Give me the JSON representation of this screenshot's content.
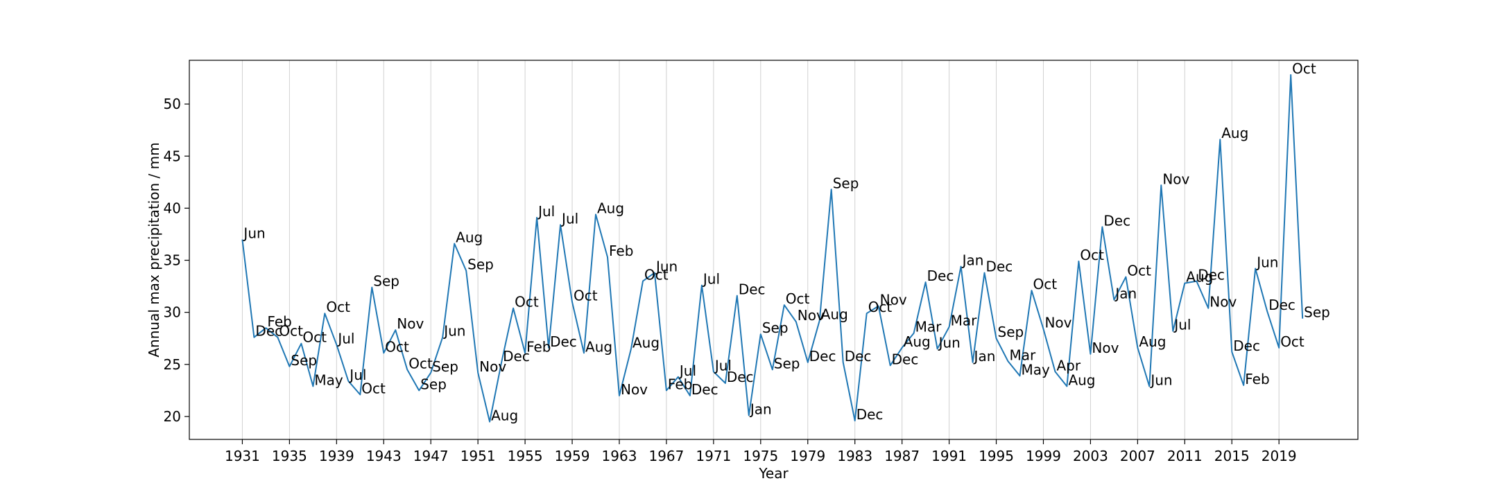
{
  "chart_data": {
    "type": "line",
    "title": "",
    "xlabel": "Year",
    "ylabel": "Annual max precipitation / mm",
    "xlim": [
      1926.5,
      2025.7
    ],
    "ylim": [
      17.8,
      54.2
    ],
    "grid": {
      "x": true,
      "y": false
    },
    "xticks": [
      1931,
      1935,
      1939,
      1943,
      1947,
      1951,
      1955,
      1959,
      1963,
      1967,
      1971,
      1975,
      1979,
      1983,
      1987,
      1991,
      1995,
      1999,
      2003,
      2007,
      2011,
      2015,
      2019
    ],
    "yticks": [
      20,
      25,
      30,
      35,
      40,
      45,
      50
    ],
    "colors": {
      "line": "#1f77b4",
      "grid": "#d0d0d0"
    },
    "series": [
      {
        "points": [
          {
            "x": 1931,
            "y": 37.0,
            "label": "Jun"
          },
          {
            "x": 1932,
            "y": 27.6,
            "label": "Dec"
          },
          {
            "x": 1933,
            "y": 28.5,
            "label": "Feb"
          },
          {
            "x": 1934,
            "y": 27.6,
            "label": "Oct"
          },
          {
            "x": 1935,
            "y": 24.8,
            "label": "Sep"
          },
          {
            "x": 1936,
            "y": 27.0,
            "label": "Oct"
          },
          {
            "x": 1937,
            "y": 22.9,
            "label": "May"
          },
          {
            "x": 1938,
            "y": 29.9,
            "label": "Oct"
          },
          {
            "x": 1939,
            "y": 26.9,
            "label": "Jul"
          },
          {
            "x": 1940,
            "y": 23.4,
            "label": "Jul"
          },
          {
            "x": 1941,
            "y": 22.1,
            "label": "Oct"
          },
          {
            "x": 1942,
            "y": 32.4,
            "label": "Sep"
          },
          {
            "x": 1943,
            "y": 26.1,
            "label": "Oct"
          },
          {
            "x": 1944,
            "y": 28.3,
            "label": "Nov"
          },
          {
            "x": 1945,
            "y": 24.5,
            "label": "Oct"
          },
          {
            "x": 1946,
            "y": 22.5,
            "label": "Sep"
          },
          {
            "x": 1947,
            "y": 24.2,
            "label": "Sep"
          },
          {
            "x": 1948,
            "y": 27.6,
            "label": "Jun"
          },
          {
            "x": 1949,
            "y": 36.6,
            "label": "Aug"
          },
          {
            "x": 1950,
            "y": 34.0,
            "label": "Sep"
          },
          {
            "x": 1951,
            "y": 24.2,
            "label": "Nov"
          },
          {
            "x": 1952,
            "y": 19.5,
            "label": "Aug"
          },
          {
            "x": 1953,
            "y": 25.2,
            "label": "Dec"
          },
          {
            "x": 1954,
            "y": 30.4,
            "label": "Oct"
          },
          {
            "x": 1955,
            "y": 26.1,
            "label": "Feb"
          },
          {
            "x": 1956,
            "y": 39.1,
            "label": "Jul"
          },
          {
            "x": 1957,
            "y": 26.6,
            "label": "Dec"
          },
          {
            "x": 1958,
            "y": 38.4,
            "label": "Jul"
          },
          {
            "x": 1959,
            "y": 31.0,
            "label": "Oct"
          },
          {
            "x": 1960,
            "y": 26.1,
            "label": "Aug"
          },
          {
            "x": 1961,
            "y": 39.4,
            "label": "Aug"
          },
          {
            "x": 1962,
            "y": 35.3,
            "label": "Feb"
          },
          {
            "x": 1963,
            "y": 22.0,
            "label": "Nov"
          },
          {
            "x": 1964,
            "y": 26.5,
            "label": "Aug"
          },
          {
            "x": 1965,
            "y": 33.0,
            "label": "Oct"
          },
          {
            "x": 1966,
            "y": 33.8,
            "label": "Jun"
          },
          {
            "x": 1967,
            "y": 22.5,
            "label": "Feb"
          },
          {
            "x": 1968,
            "y": 23.8,
            "label": "Jul"
          },
          {
            "x": 1969,
            "y": 22.0,
            "label": "Dec"
          },
          {
            "x": 1970,
            "y": 32.6,
            "label": "Jul"
          },
          {
            "x": 1971,
            "y": 24.3,
            "label": "Jul"
          },
          {
            "x": 1972,
            "y": 23.2,
            "label": "Dec"
          },
          {
            "x": 1973,
            "y": 31.6,
            "label": "Dec"
          },
          {
            "x": 1974,
            "y": 20.1,
            "label": "Jan"
          },
          {
            "x": 1975,
            "y": 27.9,
            "label": "Sep"
          },
          {
            "x": 1976,
            "y": 24.5,
            "label": "Sep"
          },
          {
            "x": 1977,
            "y": 30.7,
            "label": "Oct"
          },
          {
            "x": 1978,
            "y": 29.1,
            "label": "Nov"
          },
          {
            "x": 1979,
            "y": 25.2,
            "label": "Dec"
          },
          {
            "x": 1980,
            "y": 29.2,
            "label": "Aug"
          },
          {
            "x": 1981,
            "y": 41.8,
            "label": "Sep"
          },
          {
            "x": 1982,
            "y": 25.2,
            "label": "Dec"
          },
          {
            "x": 1983,
            "y": 19.6,
            "label": "Dec"
          },
          {
            "x": 1984,
            "y": 29.9,
            "label": "Oct"
          },
          {
            "x": 1985,
            "y": 30.6,
            "label": "Nov"
          },
          {
            "x": 1986,
            "y": 24.9,
            "label": "Dec"
          },
          {
            "x": 1987,
            "y": 26.6,
            "label": "Aug"
          },
          {
            "x": 1988,
            "y": 28.0,
            "label": "Mar"
          },
          {
            "x": 1989,
            "y": 32.9,
            "label": "Dec"
          },
          {
            "x": 1990,
            "y": 26.5,
            "label": "Jun"
          },
          {
            "x": 1991,
            "y": 28.6,
            "label": "Mar"
          },
          {
            "x": 1992,
            "y": 34.4,
            "label": "Jan"
          },
          {
            "x": 1993,
            "y": 25.2,
            "label": "Jan"
          },
          {
            "x": 1994,
            "y": 33.8,
            "label": "Dec"
          },
          {
            "x": 1995,
            "y": 27.5,
            "label": "Sep"
          },
          {
            "x": 1996,
            "y": 25.3,
            "label": "Mar"
          },
          {
            "x": 1997,
            "y": 23.9,
            "label": "May"
          },
          {
            "x": 1998,
            "y": 32.1,
            "label": "Oct"
          },
          {
            "x": 1999,
            "y": 28.4,
            "label": "Nov"
          },
          {
            "x": 2000,
            "y": 24.3,
            "label": "Apr"
          },
          {
            "x": 2001,
            "y": 22.9,
            "label": "Aug"
          },
          {
            "x": 2002,
            "y": 34.9,
            "label": "Oct"
          },
          {
            "x": 2003,
            "y": 26.0,
            "label": "Nov"
          },
          {
            "x": 2004,
            "y": 38.2,
            "label": "Dec"
          },
          {
            "x": 2005,
            "y": 31.2,
            "label": "Jan"
          },
          {
            "x": 2006,
            "y": 33.4,
            "label": "Oct"
          },
          {
            "x": 2007,
            "y": 26.6,
            "label": "Aug"
          },
          {
            "x": 2008,
            "y": 22.9,
            "label": "Jun"
          },
          {
            "x": 2009,
            "y": 42.2,
            "label": "Nov"
          },
          {
            "x": 2010,
            "y": 28.2,
            "label": "Jul"
          },
          {
            "x": 2011,
            "y": 32.8,
            "label": "Aug"
          },
          {
            "x": 2012,
            "y": 33.0,
            "label": "Dec"
          },
          {
            "x": 2013,
            "y": 30.4,
            "label": "Nov"
          },
          {
            "x": 2014,
            "y": 46.6,
            "label": "Aug"
          },
          {
            "x": 2015,
            "y": 26.2,
            "label": "Dec"
          },
          {
            "x": 2016,
            "y": 23.0,
            "label": "Feb"
          },
          {
            "x": 2017,
            "y": 34.2,
            "label": "Jun"
          },
          {
            "x": 2018,
            "y": 30.1,
            "label": "Dec"
          },
          {
            "x": 2019,
            "y": 26.6,
            "label": "Oct"
          },
          {
            "x": 2020,
            "y": 52.8,
            "label": "Oct"
          },
          {
            "x": 2021,
            "y": 29.4,
            "label": "Sep"
          }
        ]
      }
    ]
  }
}
